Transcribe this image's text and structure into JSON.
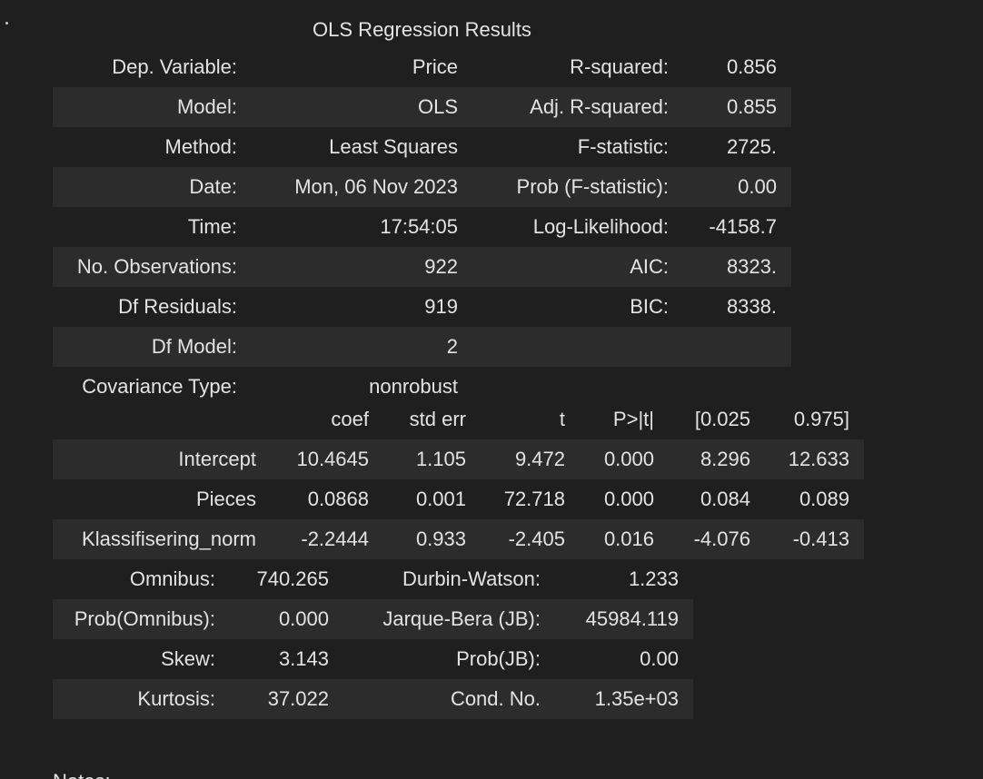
{
  "summary": {
    "title": "OLS Regression Results",
    "rows": [
      [
        "Dep. Variable:",
        "Price",
        "R-squared:",
        "0.856"
      ],
      [
        "Model:",
        "OLS",
        "Adj. R-squared:",
        "0.855"
      ],
      [
        "Method:",
        "Least Squares",
        "F-statistic:",
        "2725."
      ],
      [
        "Date:",
        "Mon, 06 Nov 2023",
        "Prob (F-statistic):",
        "0.00"
      ],
      [
        "Time:",
        "17:54:05",
        "Log-Likelihood:",
        "-4158.7"
      ],
      [
        "No. Observations:",
        "922",
        "AIC:",
        "8323."
      ],
      [
        "Df Residuals:",
        "919",
        "BIC:",
        "8338."
      ],
      [
        "Df Model:",
        "2",
        "",
        ""
      ],
      [
        "Covariance Type:",
        "nonrobust",
        "",
        ""
      ]
    ]
  },
  "coefficients": {
    "headers": [
      "",
      "coef",
      "std err",
      "t",
      "P>|t|",
      "[0.025",
      "0.975]"
    ],
    "rows": [
      [
        "Intercept",
        "10.4645",
        "1.105",
        "9.472",
        "0.000",
        "8.296",
        "12.633"
      ],
      [
        "Pieces",
        "0.0868",
        "0.001",
        "72.718",
        "0.000",
        "0.084",
        "0.089"
      ],
      [
        "Klassifisering_norm",
        "-2.2444",
        "0.933",
        "-2.405",
        "0.016",
        "-4.076",
        "-0.413"
      ]
    ]
  },
  "diagnostics": {
    "rows": [
      [
        "Omnibus:",
        "740.265",
        "Durbin-Watson:",
        "1.233"
      ],
      [
        "Prob(Omnibus):",
        "0.000",
        "Jarque-Bera (JB):",
        "45984.119"
      ],
      [
        "Skew:",
        "3.143",
        "Prob(JB):",
        "0.00"
      ],
      [
        "Kurtosis:",
        "37.022",
        "Cond. No.",
        "1.35e+03"
      ]
    ]
  },
  "notes_label": "Notes:",
  "colors": {
    "background": "#1f1f1f",
    "row_shade": "#2c2c2c",
    "text": "#e3e3e3"
  }
}
